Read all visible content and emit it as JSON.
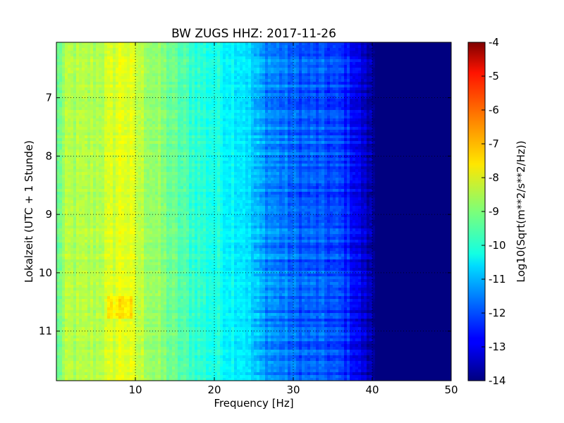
{
  "chart_data": {
    "type": "heatmap",
    "title": "BW ZUGS HHZ: 2017-11-26",
    "xlabel": "Frequency [Hz]",
    "ylabel": "Lokalzeit (UTC + 1 Stunde)",
    "xlim": [
      0,
      50
    ],
    "ylim": [
      11.85,
      6.05
    ],
    "x_ticks": [
      10,
      20,
      30,
      40,
      50
    ],
    "y_ticks": [
      7,
      8,
      9,
      10,
      11
    ],
    "grid": true,
    "colormap": "jet",
    "colorbar": {
      "label": "Log10(Sqrt(m**2/s**2/Hz))",
      "range": [
        -14,
        -4
      ],
      "ticks": [
        "-4",
        "-5",
        "-6",
        "-7",
        "-8",
        "-9",
        "-10",
        "-11",
        "-12",
        "-13",
        "-14"
      ]
    },
    "spectrum_profile": {
      "frequency_hz": [
        0,
        0.5,
        1.5,
        3,
        5,
        7,
        8.5,
        10,
        12,
        14,
        16,
        18,
        20,
        22,
        24,
        25,
        26,
        28,
        30,
        32,
        34,
        36,
        37.5,
        38.5,
        40,
        41,
        50
      ],
      "log10_amplitude": [
        -9.4,
        -9.0,
        -8.5,
        -8.6,
        -8.5,
        -8.2,
        -7.9,
        -8.3,
        -8.7,
        -9.1,
        -9.5,
        -9.8,
        -10.0,
        -10.2,
        -10.4,
        -10.9,
        -11.2,
        -11.5,
        -11.8,
        -11.9,
        -12.0,
        -12.2,
        -12.6,
        -13.1,
        -13.7,
        -14.0,
        -14.0
      ]
    }
  }
}
